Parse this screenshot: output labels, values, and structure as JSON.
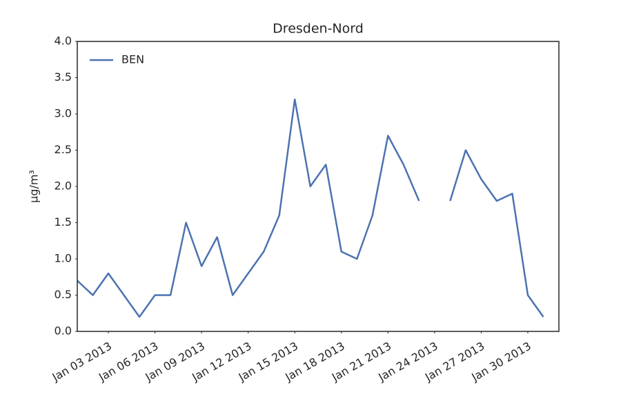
{
  "chart_data": {
    "type": "line",
    "title": "Dresden-Nord",
    "y_label": "µg/m³",
    "x": [
      "2013-01-01",
      "2013-01-02",
      "2013-01-03",
      "2013-01-04",
      "2013-01-05",
      "2013-01-06",
      "2013-01-07",
      "2013-01-08",
      "2013-01-09",
      "2013-01-10",
      "2013-01-11",
      "2013-01-12",
      "2013-01-13",
      "2013-01-14",
      "2013-01-15",
      "2013-01-16",
      "2013-01-17",
      "2013-01-18",
      "2013-01-19",
      "2013-01-20",
      "2013-01-21",
      "2013-01-22",
      "2013-01-23",
      "2013-01-24",
      "2013-01-25",
      "2013-01-26",
      "2013-01-27",
      "2013-01-28",
      "2013-01-29",
      "2013-01-30",
      "2013-01-31"
    ],
    "series": [
      {
        "name": "BEN",
        "color": "#4c72b0",
        "values": [
          0.7,
          0.5,
          0.8,
          0.5,
          0.2,
          0.5,
          0.5,
          1.5,
          0.9,
          1.3,
          0.5,
          0.8,
          1.1,
          1.6,
          3.2,
          2.0,
          2.3,
          1.1,
          1.0,
          1.6,
          2.7,
          2.3,
          1.8,
          null,
          1.8,
          2.5,
          2.1,
          1.8,
          1.9,
          0.5,
          0.2
        ]
      }
    ],
    "xlim": [
      "2013-01-01",
      "2013-02-01"
    ],
    "xticks": [
      {
        "value": "2013-01-03",
        "label": "Jan 03 2013"
      },
      {
        "value": "2013-01-06",
        "label": "Jan 06 2013"
      },
      {
        "value": "2013-01-09",
        "label": "Jan 09 2013"
      },
      {
        "value": "2013-01-12",
        "label": "Jan 12 2013"
      },
      {
        "value": "2013-01-15",
        "label": "Jan 15 2013"
      },
      {
        "value": "2013-01-18",
        "label": "Jan 18 2013"
      },
      {
        "value": "2013-01-21",
        "label": "Jan 21 2013"
      },
      {
        "value": "2013-01-24",
        "label": "Jan 24 2013"
      },
      {
        "value": "2013-01-27",
        "label": "Jan 27 2013"
      },
      {
        "value": "2013-01-30",
        "label": "Jan 30 2013"
      }
    ],
    "ylim": [
      0,
      4
    ],
    "yticks": [
      {
        "value": 0,
        "label": "0.0"
      },
      {
        "value": 0.5,
        "label": "0.5"
      },
      {
        "value": 1,
        "label": "1.0"
      },
      {
        "value": 1.5,
        "label": "1.5"
      },
      {
        "value": 2,
        "label": "2.0"
      },
      {
        "value": 2.5,
        "label": "2.5"
      },
      {
        "value": 3,
        "label": "3.0"
      },
      {
        "value": 3.5,
        "label": "3.5"
      },
      {
        "value": 4,
        "label": "4.0"
      }
    ],
    "grid": false,
    "legend": "upper left"
  }
}
